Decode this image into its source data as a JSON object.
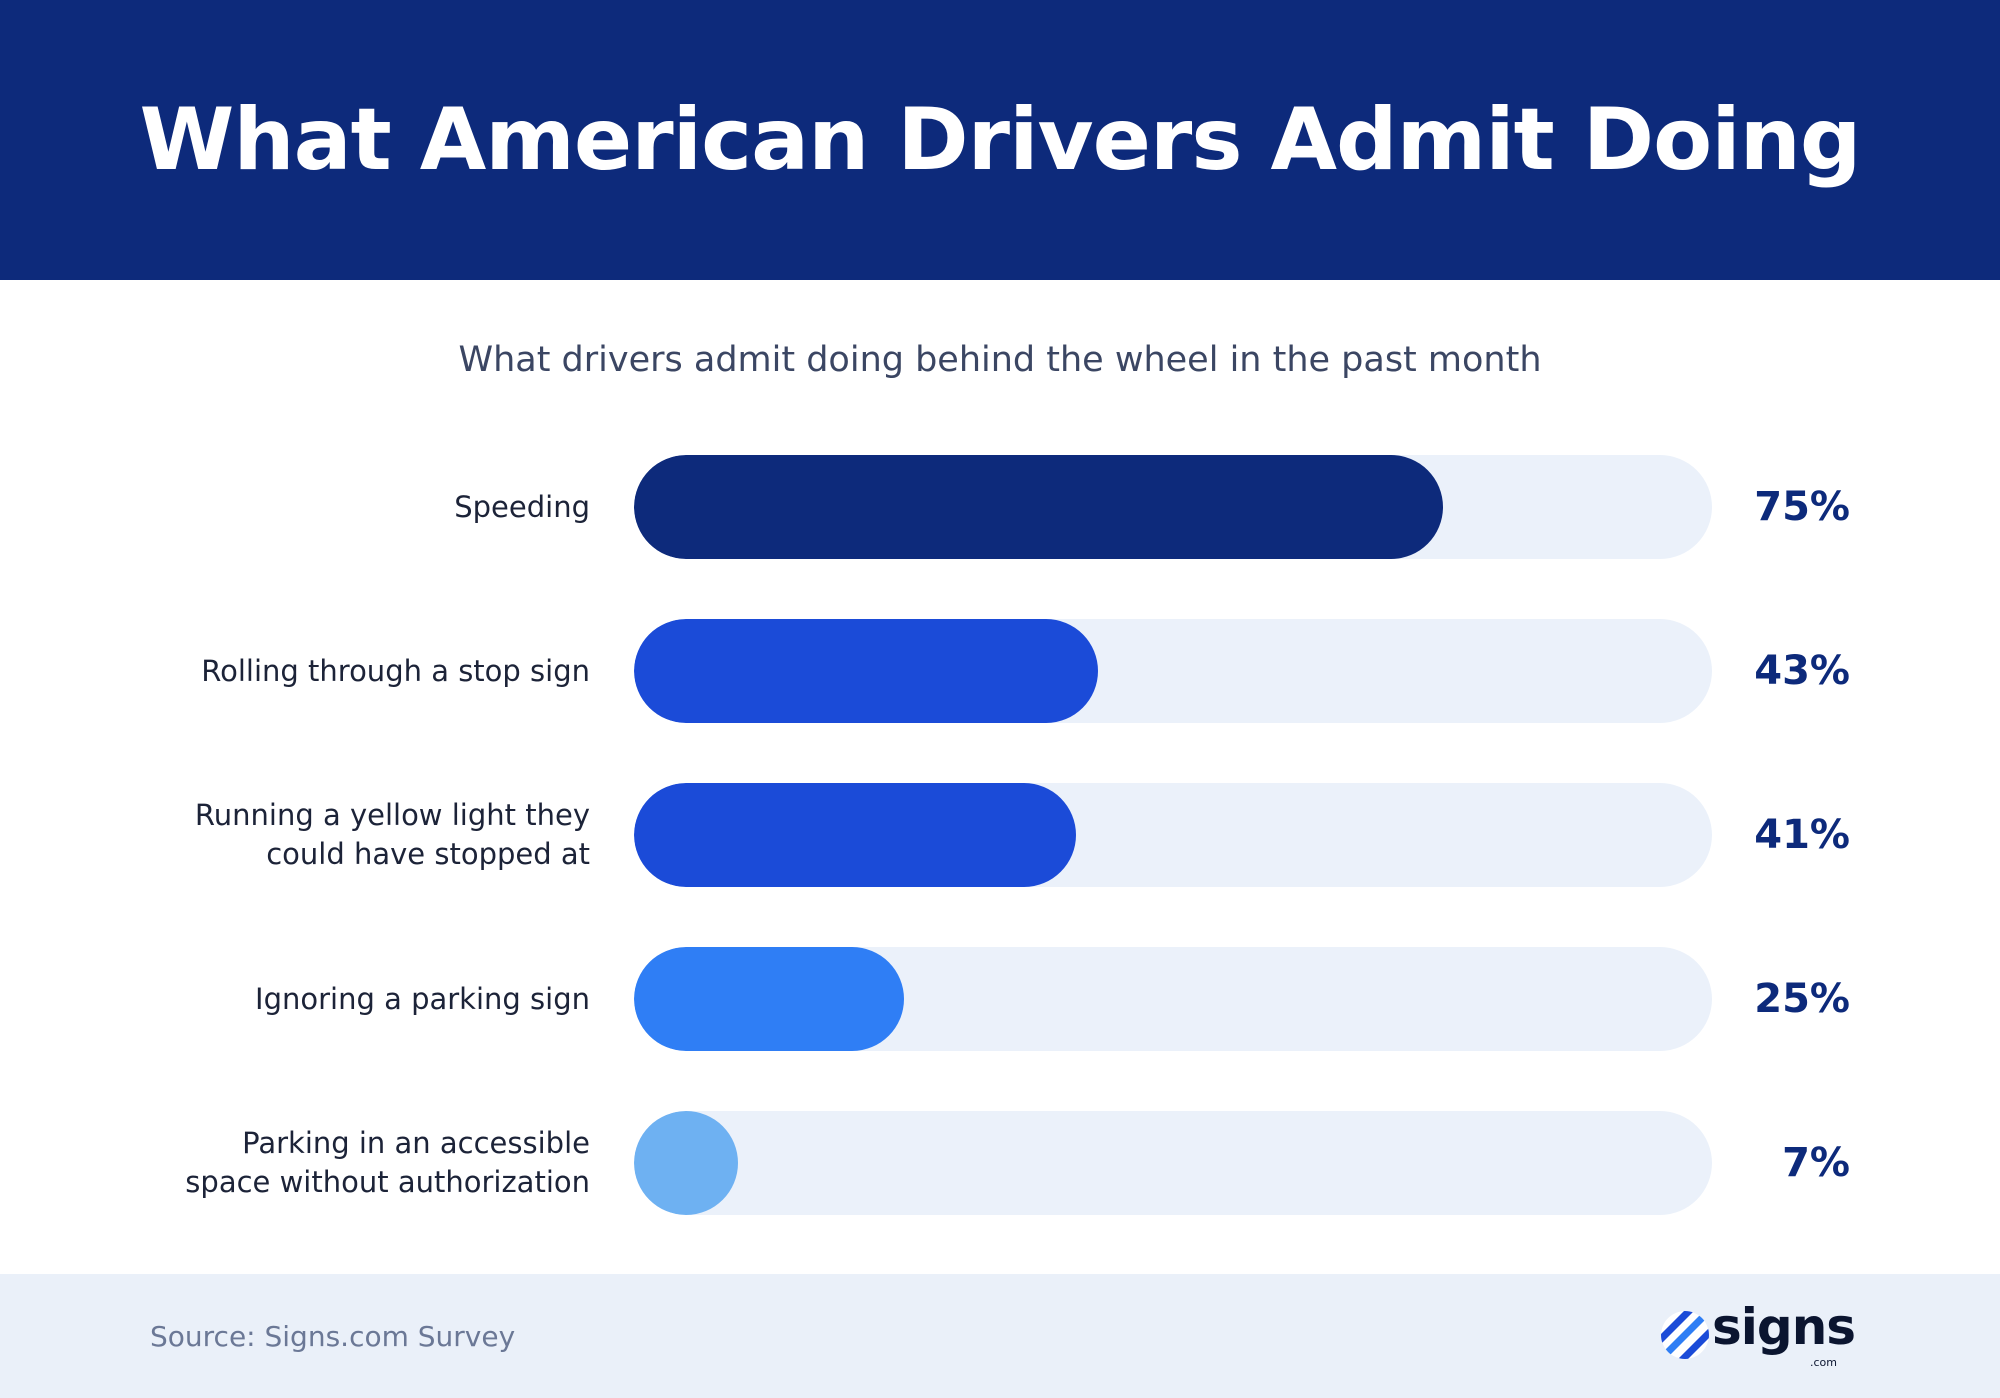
{
  "header": {
    "title": "What American Drivers Admit Doing"
  },
  "chart_data": {
    "type": "bar",
    "orientation": "horizontal",
    "title": "What drivers admit doing behind the wheel in the past month",
    "categories": [
      "Speeding",
      "Rolling through a stop sign",
      "Running a yellow light they\ncould have stopped at",
      "Ignoring a parking sign",
      "Parking in an accessible\nspace without authorization"
    ],
    "values": [
      75,
      43,
      41,
      25,
      7
    ],
    "value_labels": [
      "75%",
      "43%",
      "41%",
      "25%",
      "7%"
    ],
    "colors": [
      "#0d2a7b",
      "#1b4bd8",
      "#1b4bd8",
      "#2f7ef5",
      "#6eb1f2"
    ],
    "xlim": [
      0,
      100
    ],
    "grid": false
  },
  "footer": {
    "source": "Source: Signs.com Survey",
    "logo_text": "signs",
    "logo_sub": ".com"
  }
}
